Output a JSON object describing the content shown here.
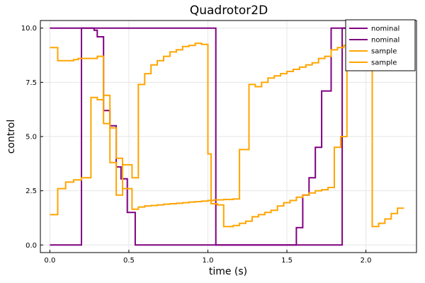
{
  "chart_data": {
    "type": "line",
    "step": true,
    "title": "Quadrotor2D",
    "xlabel": "time (s)",
    "ylabel": "control",
    "xlim": [
      -0.06,
      2.32
    ],
    "ylim": [
      -0.35,
      10.35
    ],
    "xticks": [
      0.0,
      0.5,
      1.0,
      1.5,
      2.0
    ],
    "xtick_labels": [
      "0.0",
      "0.5",
      "1.0",
      "1.5",
      "2.0"
    ],
    "yticks": [
      0.0,
      2.5,
      5.0,
      7.5,
      10.0
    ],
    "ytick_labels": [
      "0.0",
      "2.5",
      "5.0",
      "7.5",
      "10.0"
    ],
    "grid": true,
    "legend": [
      "nominal",
      "nominal",
      "sample",
      "sample"
    ],
    "legend_position": "top-right",
    "series": [
      {
        "name": "nominal",
        "color": "#800080",
        "x": [
          0.0,
          0.2,
          0.2,
          1.05,
          1.05,
          1.85,
          1.85,
          2.0
        ],
        "y": [
          0.0,
          0.0,
          10.0,
          10.0,
          0.0,
          0.0,
          10.0,
          10.0
        ]
      },
      {
        "name": "nominal",
        "color": "#800080",
        "x": [
          0.0,
          0.25,
          0.28,
          0.3,
          0.34,
          0.38,
          0.42,
          0.45,
          0.49,
          0.54,
          1.0,
          1.04,
          1.06,
          1.1,
          1.12,
          1.16,
          1.2,
          1.24,
          1.26,
          1.3,
          1.38,
          1.42,
          1.44,
          1.56,
          1.6,
          1.64,
          1.68,
          1.72,
          1.78,
          2.0
        ],
        "y": [
          10.0,
          10.0,
          9.9,
          9.6,
          6.2,
          5.5,
          3.6,
          3.05,
          1.5,
          0.0,
          0.0,
          0.0,
          0.0,
          0.0,
          0.0,
          0.0,
          0.0,
          0.0,
          0.0,
          0.0,
          0.0,
          0.0,
          0.0,
          0.8,
          2.3,
          3.1,
          4.5,
          7.1,
          10.0,
          10.0
        ]
      },
      {
        "name": "sample",
        "color": "#FFA500",
        "x": [
          0.0,
          0.05,
          0.1,
          0.15,
          0.2,
          0.26,
          0.3,
          0.34,
          0.38,
          0.42,
          0.46,
          0.52,
          0.56,
          0.6,
          0.64,
          0.68,
          0.72,
          0.76,
          0.8,
          0.84,
          0.88,
          0.92,
          0.96,
          1.0,
          1.04,
          1.1,
          1.16,
          1.2,
          1.26,
          1.3,
          1.34,
          1.38,
          1.42,
          1.46,
          1.5,
          1.54,
          1.58,
          1.62,
          1.66,
          1.7,
          1.74,
          1.78,
          1.82,
          1.86,
          1.88,
          2.04,
          2.08,
          2.12,
          2.16,
          2.2,
          2.24
        ],
        "y": [
          1.4,
          2.6,
          2.9,
          3.0,
          3.1,
          6.8,
          6.7,
          6.9,
          5.4,
          4.0,
          2.6,
          1.65,
          1.75,
          1.8,
          1.82,
          1.85,
          1.88,
          1.9,
          1.92,
          1.95,
          1.98,
          2.0,
          2.02,
          2.05,
          2.08,
          2.1,
          2.12,
          4.4,
          7.4,
          7.3,
          7.5,
          7.7,
          7.8,
          7.9,
          8.0,
          8.1,
          8.2,
          8.3,
          8.4,
          8.6,
          8.7,
          9.0,
          9.1,
          9.2,
          9.3,
          0.85,
          1.0,
          1.2,
          1.45,
          1.7,
          1.7
        ]
      },
      {
        "name": "sample",
        "color": "#FFA500",
        "x": [
          0.0,
          0.05,
          0.1,
          0.15,
          0.18,
          0.22,
          0.26,
          0.3,
          0.34,
          0.38,
          0.42,
          0.46,
          0.52,
          0.56,
          0.6,
          0.64,
          0.68,
          0.72,
          0.76,
          0.8,
          0.84,
          0.88,
          0.92,
          0.96,
          1.0,
          1.02,
          1.06,
          1.1,
          1.16,
          1.2,
          1.24,
          1.28,
          1.32,
          1.36,
          1.4,
          1.44,
          1.48,
          1.52,
          1.56,
          1.6,
          1.64,
          1.68,
          1.72,
          1.76,
          1.8,
          1.84,
          1.88,
          2.0
        ],
        "y": [
          9.1,
          8.5,
          8.5,
          8.55,
          8.6,
          8.6,
          8.6,
          8.7,
          5.6,
          3.8,
          2.3,
          3.7,
          3.1,
          7.4,
          7.9,
          8.3,
          8.5,
          8.7,
          8.9,
          9.0,
          9.15,
          9.2,
          9.3,
          9.25,
          4.2,
          1.9,
          1.85,
          0.85,
          0.9,
          1.0,
          1.1,
          1.3,
          1.4,
          1.5,
          1.6,
          1.8,
          1.95,
          2.05,
          2.2,
          2.3,
          2.4,
          2.5,
          2.55,
          2.65,
          4.5,
          5.0,
          9.3,
          9.3
        ]
      }
    ]
  }
}
